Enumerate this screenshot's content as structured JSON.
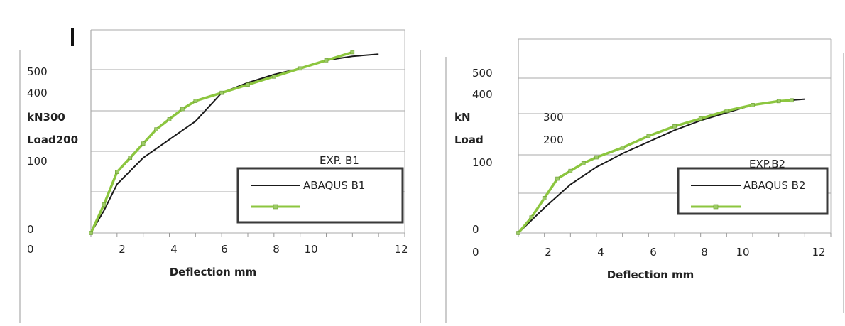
{
  "chart_data": [
    {
      "type": "line",
      "xlabel": "Deflection  mm",
      "ylabel_top": "kN",
      "ylabel_bottom": "Load",
      "xlim": [
        0,
        12
      ],
      "ylim": [
        0,
        500
      ],
      "x_tick_labels": [
        "0",
        "2",
        "4",
        "6",
        "8",
        "10",
        "12"
      ],
      "y_tick_labels": [
        "0",
        "100",
        "200",
        "300",
        "400",
        "500"
      ],
      "grid": "horizontal",
      "legend_position": "bottom-right",
      "series": [
        {
          "name": "EXP. B1",
          "style": "green-marker-line",
          "x": [
            0,
            0.5,
            1.0,
            1.5,
            2.0,
            2.5,
            3.0,
            3.5,
            4.0,
            5.0,
            6.0,
            7.0,
            8.0,
            9.0,
            10.0
          ],
          "y": [
            0,
            70,
            150,
            185,
            220,
            255,
            280,
            305,
            325,
            345,
            365,
            385,
            405,
            425,
            445
          ]
        },
        {
          "name": "ABAQUS B1",
          "style": "black-line",
          "x": [
            0,
            0.5,
            1.0,
            2.0,
            3.0,
            4.0,
            5.0,
            6.0,
            7.0,
            8.0,
            9.0,
            10.0,
            11.0
          ],
          "y": [
            0,
            55,
            120,
            185,
            230,
            275,
            345,
            370,
            390,
            405,
            425,
            435,
            440
          ]
        }
      ]
    },
    {
      "type": "line",
      "xlabel": "Deflection mm",
      "ylabel_top": "kN",
      "ylabel_bottom": "Load",
      "xlim": [
        0,
        12
      ],
      "ylim": [
        0,
        500
      ],
      "x_tick_labels": [
        "0",
        "2",
        "4",
        "6",
        "8",
        "10",
        "12"
      ],
      "y_tick_labels": [
        "0",
        "100",
        "200",
        "300",
        "400",
        "500"
      ],
      "grid": "horizontal",
      "legend_position": "bottom-right",
      "series": [
        {
          "name": "EXP.B2",
          "style": "green-marker-line",
          "x": [
            0,
            0.5,
            1.0,
            1.5,
            2.0,
            2.5,
            3.0,
            4.0,
            5.0,
            6.0,
            7.0,
            8.0,
            9.0,
            10.0,
            10.5
          ],
          "y": [
            0,
            40,
            90,
            140,
            160,
            180,
            195,
            220,
            250,
            275,
            295,
            315,
            330,
            340,
            342
          ]
        },
        {
          "name": "ABAQUS B2",
          "style": "black-line",
          "x": [
            0,
            1.0,
            2.0,
            3.0,
            4.0,
            5.0,
            6.0,
            7.0,
            8.0,
            9.0,
            10.0,
            11.0
          ],
          "y": [
            0,
            65,
            125,
            170,
            205,
            235,
            265,
            290,
            310,
            330,
            340,
            345
          ]
        }
      ]
    }
  ]
}
